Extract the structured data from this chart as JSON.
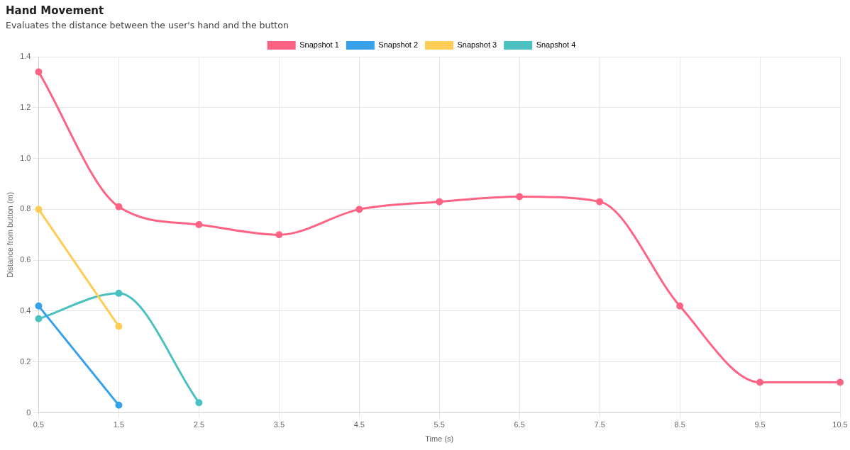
{
  "chart_data": {
    "type": "line",
    "title": "Hand Movement",
    "subtitle": "Evaluates the distance between the user's hand and the button",
    "xlabel": "Time (s)",
    "ylabel": "Distance from button (m)",
    "categories": [
      "0.5",
      "1.5",
      "2.5",
      "3.5",
      "4.5",
      "5.5",
      "6.5",
      "7.5",
      "8.5",
      "9.5",
      "10.5"
    ],
    "series": [
      {
        "name": "Snapshot 1",
        "color": "#ff6384",
        "values": [
          1.34,
          0.81,
          0.74,
          0.7,
          0.8,
          0.83,
          0.85,
          0.83,
          0.42,
          0.12,
          0.12
        ]
      },
      {
        "name": "Snapshot 2",
        "color": "#36a2eb",
        "values": [
          0.42,
          0.03,
          null,
          null,
          null,
          null,
          null,
          null,
          null,
          null,
          null
        ]
      },
      {
        "name": "Snapshot 3",
        "color": "#ffcd56",
        "values": [
          0.8,
          0.34,
          null,
          null,
          null,
          null,
          null,
          null,
          null,
          null,
          null
        ]
      },
      {
        "name": "Snapshot 4",
        "color": "#4bc0c0",
        "values": [
          0.37,
          0.47,
          0.04,
          null,
          null,
          null,
          null,
          null,
          null,
          null,
          null
        ]
      }
    ],
    "ylim": [
      0,
      1.4
    ],
    "yticks": [
      {
        "value": 0,
        "label": "0"
      },
      0.2,
      0.4,
      0.6,
      0.8,
      {
        "value": 1,
        "label": "1.0"
      },
      1.2,
      1.4
    ],
    "grid": true,
    "legend": "top",
    "marker": "circle",
    "line_style": "solid"
  }
}
